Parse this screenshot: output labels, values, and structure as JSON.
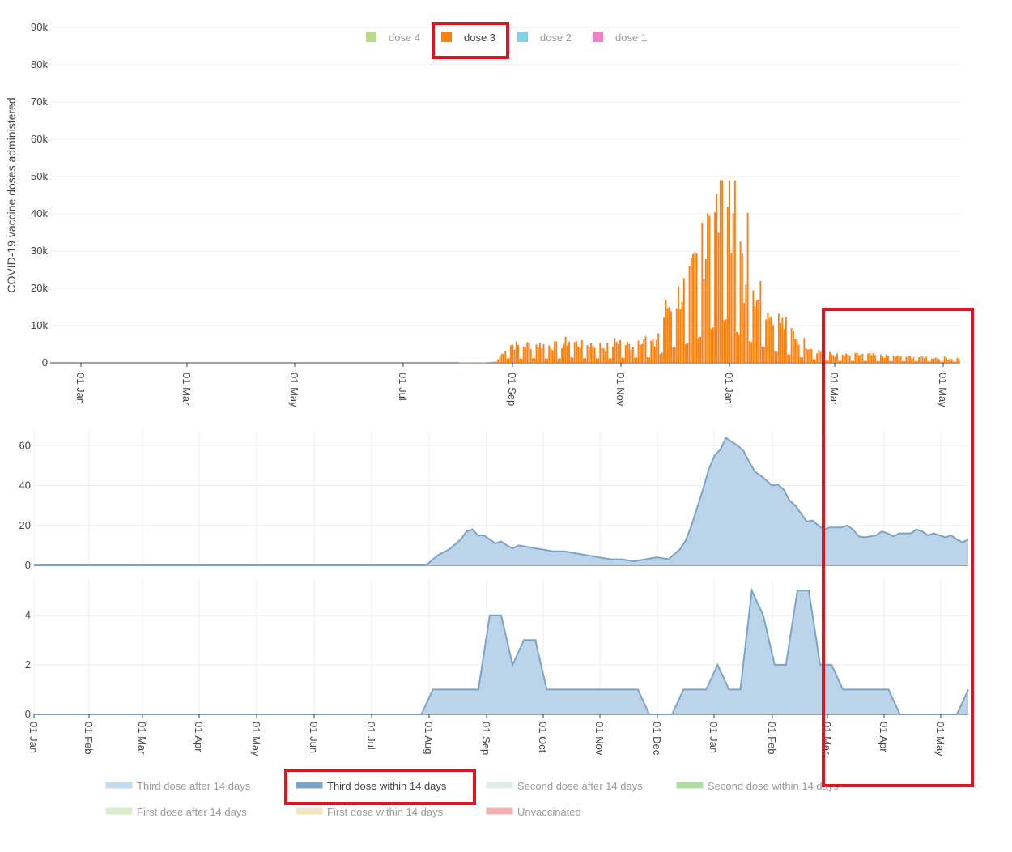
{
  "chart_data": [
    {
      "type": "bar",
      "ylabel": "COVID-19 vaccine doses administered",
      "yticks": [
        "0",
        "10k",
        "20k",
        "30k",
        "40k",
        "50k",
        "60k",
        "70k",
        "80k",
        "90k"
      ],
      "ylim": [
        0,
        90000
      ],
      "xticks": [
        "01 Jan",
        "01 Mar",
        "01 May",
        "01 Jul",
        "01 Sep",
        "01 Nov",
        "01 Jan",
        "01 Mar",
        "01 May"
      ],
      "legend": [
        "dose 4",
        "dose 3",
        "dose 2",
        "dose 1"
      ],
      "legend_colors": [
        "#b9d98a",
        "#ff7f0e",
        "#7fd3e8",
        "#ef7fc0"
      ],
      "legend_active": "dose 3",
      "legend_placement": "top-center",
      "series": [
        {
          "name": "dose 3",
          "color": "#ff7f0e",
          "x_range": [
            "2021-08-11",
            "2022-05-16"
          ],
          "approx_values_by_week": [
            100,
            100,
            100,
            300,
            5000,
            4500,
            5000,
            4800,
            4500,
            6000,
            4700,
            5200,
            4000,
            6000,
            4500,
            7000,
            4800,
            15000,
            18000,
            22000,
            30000,
            40000,
            48000,
            28000,
            22000,
            17000,
            12000,
            9000,
            6000,
            4000,
            2500,
            2000,
            2000,
            2200,
            2000,
            1800,
            1700,
            1600,
            1500,
            1400,
            1300,
            1200
          ]
        }
      ],
      "highlight_box": "Mar–May (second year)"
    },
    {
      "type": "area",
      "yticks": [
        "0",
        "20",
        "40",
        "60"
      ],
      "ylim": [
        0,
        65
      ],
      "series": [
        {
          "name": "Third dose within 14 days",
          "weekly_values": [
            0,
            0,
            0,
            0,
            0,
            0,
            0,
            0,
            0,
            0,
            0,
            0,
            0,
            0,
            0,
            0,
            0,
            0,
            0,
            0,
            0,
            0,
            0,
            0,
            0,
            0,
            0,
            0,
            0,
            0,
            0,
            0,
            0,
            0,
            0,
            5,
            8,
            13,
            18,
            15,
            11,
            10,
            10,
            9,
            8,
            7,
            7,
            6,
            5,
            4,
            3,
            3,
            2,
            3,
            4,
            3,
            8,
            20,
            38,
            55,
            64,
            60,
            52,
            45,
            40,
            38,
            30,
            22,
            20,
            19,
            19,
            18,
            14,
            15,
            16,
            16,
            16,
            17,
            16,
            14,
            13,
            13
          ]
        }
      ]
    },
    {
      "type": "area",
      "yticks": [
        "0",
        "2",
        "4"
      ],
      "ylim": [
        0,
        5.3
      ],
      "xticks": [
        "01 Jan",
        "01 Feb",
        "01 Mar",
        "01 Apr",
        "01 May",
        "01 Jun",
        "01 Jul",
        "01 Aug",
        "01 Sep",
        "01 Oct",
        "01 Nov",
        "01 Dec",
        "01 Jan",
        "01 Feb",
        "01 Mar",
        "01 Apr",
        "01 May"
      ],
      "series": [
        {
          "name": "Third dose within 14 days",
          "weekly_values": [
            0,
            0,
            0,
            0,
            0,
            0,
            0,
            0,
            0,
            0,
            0,
            0,
            0,
            0,
            0,
            0,
            0,
            0,
            0,
            0,
            0,
            0,
            0,
            0,
            0,
            0,
            0,
            0,
            0,
            0,
            0,
            0,
            0,
            0,
            0,
            1,
            1,
            1,
            1,
            1,
            4,
            4,
            2,
            3,
            3,
            1,
            1,
            1,
            1,
            1,
            1,
            1,
            1,
            1,
            0,
            0,
            0,
            1,
            1,
            1,
            2,
            1,
            1,
            5,
            4,
            2,
            2,
            5,
            5,
            2,
            2,
            1,
            1,
            1,
            1,
            1,
            0,
            0,
            0,
            0,
            0,
            0,
            1
          ]
        }
      ],
      "legend": [
        "Third dose after 14 days",
        "Third dose within 14 days",
        "Second dose after 14 days",
        "Second dose within 14 days",
        "First dose after 14 days",
        "First dose within 14 days",
        "Unvaccinated"
      ],
      "legend_colors": [
        "#a9c7e4",
        "#7ba4c9",
        "#cce7d8",
        "#8cc97a",
        "#c9e3b2",
        "#f2d6a8",
        "#f08a8a"
      ],
      "legend_active": "Third dose within 14 days",
      "legend_placement": "bottom"
    }
  ]
}
